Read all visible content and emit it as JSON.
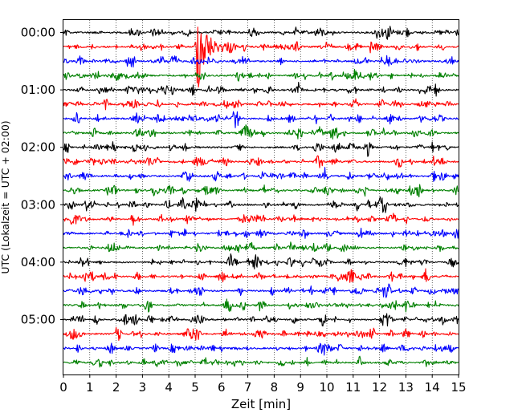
{
  "chart_data": {
    "type": "line",
    "title": "",
    "xlabel": "Zeit  [min]",
    "ylabel": "UTC (Lokalzeit = UTC + 02:00)",
    "xlim": [
      0,
      15
    ],
    "x_ticks": [
      0,
      1,
      2,
      3,
      4,
      5,
      6,
      7,
      8,
      9,
      10,
      11,
      12,
      13,
      14,
      15
    ],
    "x_tick_labels": [
      "0",
      "1",
      "2",
      "3",
      "4",
      "5",
      "6",
      "7",
      "8",
      "9",
      "10",
      "11",
      "12",
      "13",
      "14",
      "15"
    ],
    "y_tick_labels": [
      "00:00",
      "01:00",
      "02:00",
      "03:00",
      "04:00",
      "05:00"
    ],
    "y_tick_rows": [
      0,
      4,
      8,
      12,
      16,
      20
    ],
    "row_minutes": 15,
    "rows": 24,
    "row_start_times": [
      "00:00",
      "00:15",
      "00:30",
      "00:45",
      "01:00",
      "01:15",
      "01:30",
      "01:45",
      "02:00",
      "02:15",
      "02:30",
      "02:45",
      "03:00",
      "03:15",
      "03:30",
      "03:45",
      "04:00",
      "04:15",
      "04:30",
      "04:45",
      "05:00",
      "05:15",
      "05:30",
      "05:45"
    ],
    "trace_colors": [
      "#000000",
      "#ff0000",
      "#0000ff",
      "#008000"
    ],
    "grid": {
      "vertical": true,
      "style": "dotted"
    },
    "event": {
      "row": 1,
      "time_min": 5.1
    }
  }
}
